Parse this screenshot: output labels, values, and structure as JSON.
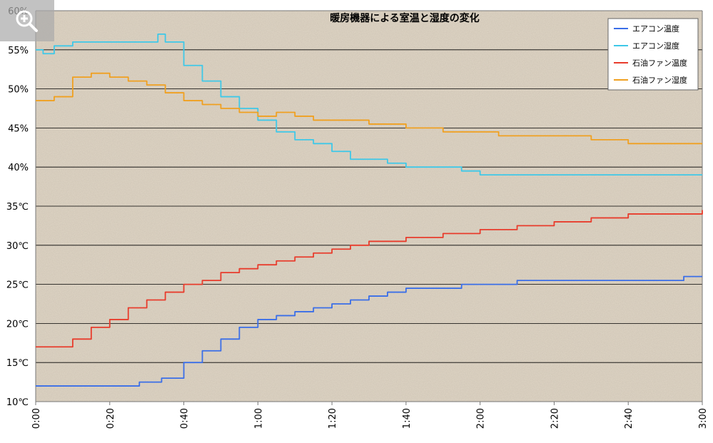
{
  "chart_data": {
    "type": "line",
    "title": "暖房機器による室温と湿度の変化",
    "x_ticks": [
      "0:00",
      "0:20",
      "0:40",
      "1:00",
      "1:20",
      "1:40",
      "2:00",
      "2:20",
      "2:40",
      "3:00"
    ],
    "xlim": [
      "0:00",
      "3:00"
    ],
    "y_ticks": [
      "60%",
      "55%",
      "50%",
      "45%",
      "40%",
      "35℃",
      "30℃",
      "25℃",
      "20℃",
      "15℃",
      "10℃"
    ],
    "grid": true,
    "legend_position": "top-right",
    "series": [
      {
        "name": "エアコン温度",
        "color": "#3a6ee8",
        "axis": "temperature_celsius",
        "x": [
          "0:00",
          "0:24",
          "0:28",
          "0:34",
          "0:36",
          "0:40",
          "0:45",
          "0:50",
          "0:55",
          "1:00",
          "1:05",
          "1:10",
          "1:15",
          "1:20",
          "1:25",
          "1:30",
          "1:35",
          "1:40",
          "1:50",
          "1:55",
          "2:00",
          "2:05",
          "2:10",
          "2:20",
          "2:30",
          "2:40",
          "2:50",
          "2:55",
          "3:00"
        ],
        "values": [
          12,
          12,
          12.5,
          13,
          13,
          15,
          16.5,
          18,
          19.5,
          20.5,
          21,
          21.5,
          22,
          22.5,
          23,
          23.5,
          24,
          24.5,
          24.5,
          25,
          25,
          25,
          25.5,
          25.5,
          25.5,
          25.5,
          25.5,
          26,
          26
        ]
      },
      {
        "name": "エアコン湿度",
        "color": "#3ec8e8",
        "axis": "humidity_percent",
        "x": [
          "0:00",
          "0:02",
          "0:05",
          "0:10",
          "0:15",
          "0:20",
          "0:25",
          "0:30",
          "0:33",
          "0:35",
          "0:40",
          "0:45",
          "0:50",
          "0:55",
          "1:00",
          "1:05",
          "1:10",
          "1:15",
          "1:20",
          "1:25",
          "1:30",
          "1:35",
          "1:40",
          "1:45",
          "1:50",
          "1:55",
          "2:00",
          "2:05",
          "2:10",
          "2:20",
          "2:30",
          "2:40",
          "2:50",
          "3:00"
        ],
        "values": [
          55,
          54.5,
          55.5,
          56,
          56,
          56,
          56,
          56,
          57,
          56,
          53,
          51,
          49,
          47.5,
          46,
          44.5,
          43.5,
          43,
          42,
          41,
          41,
          40.5,
          40,
          40,
          40,
          39.5,
          39,
          39,
          39,
          39,
          39,
          39,
          39,
          39
        ]
      },
      {
        "name": "石油ファン温度",
        "color": "#e83c2c",
        "axis": "temperature_celsius",
        "x": [
          "0:00",
          "0:07",
          "0:10",
          "0:15",
          "0:20",
          "0:25",
          "0:30",
          "0:35",
          "0:40",
          "0:45",
          "0:50",
          "0:55",
          "1:00",
          "1:05",
          "1:10",
          "1:15",
          "1:20",
          "1:25",
          "1:30",
          "1:35",
          "1:40",
          "1:45",
          "1:50",
          "1:55",
          "2:00",
          "2:05",
          "2:10",
          "2:20",
          "2:30",
          "2:40",
          "2:50",
          "3:00"
        ],
        "values": [
          17,
          17,
          18,
          19.5,
          20.5,
          22,
          23,
          24,
          25,
          25.5,
          26.5,
          27,
          27.5,
          28,
          28.5,
          29,
          29.5,
          30,
          30.5,
          30.5,
          31,
          31,
          31.5,
          31.5,
          32,
          32,
          32.5,
          33,
          33.5,
          34,
          34,
          34.5
        ]
      },
      {
        "name": "石油ファン湿度",
        "color": "#f0a020",
        "axis": "humidity_percent",
        "x": [
          "0:00",
          "0:05",
          "0:10",
          "0:15",
          "0:20",
          "0:25",
          "0:30",
          "0:35",
          "0:40",
          "0:45",
          "0:50",
          "0:55",
          "1:00",
          "1:05",
          "1:10",
          "1:15",
          "1:20",
          "1:25",
          "1:30",
          "1:35",
          "1:40",
          "1:45",
          "1:50",
          "1:55",
          "2:00",
          "2:05",
          "2:10",
          "2:20",
          "2:30",
          "2:40",
          "2:50",
          "3:00"
        ],
        "values": [
          48.5,
          49,
          51.5,
          52,
          51.5,
          51,
          50.5,
          49.5,
          48.5,
          48,
          47.5,
          47,
          46.5,
          47,
          46.5,
          46,
          46,
          46,
          45.5,
          45.5,
          45,
          45,
          44.5,
          44.5,
          44.5,
          44,
          44,
          44,
          43.5,
          43,
          43,
          43
        ]
      }
    ]
  },
  "ui": {
    "zoom_icon": "zoom-in-icon"
  }
}
